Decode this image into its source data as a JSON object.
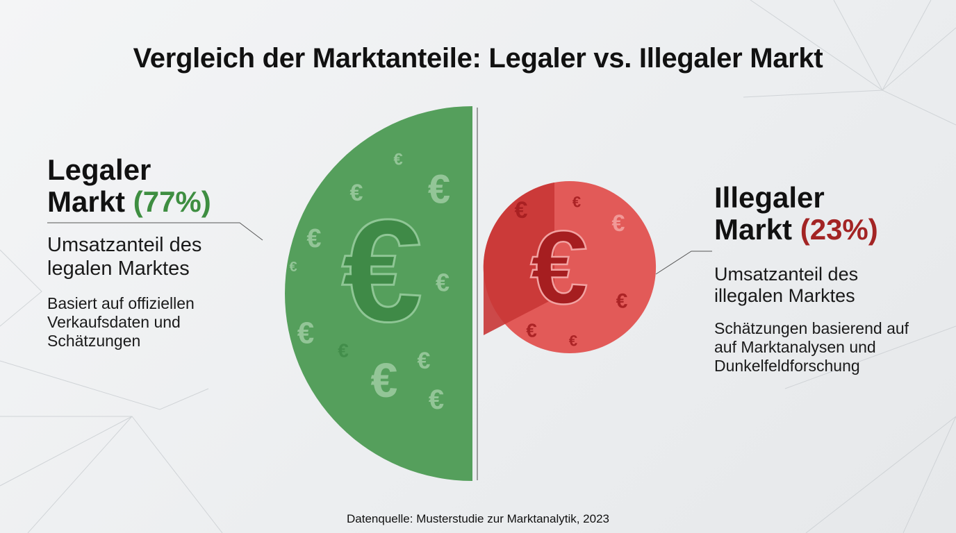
{
  "title": "Vergleich der Marktanteile: Legaler vs. Illegaler Markt",
  "legal": {
    "name_line1": "Legaler",
    "name_line2": "Markt",
    "percent_label": "(77%)",
    "sub_line1": "Umsatzanteil des",
    "sub_line2": "legalen Marktes",
    "note_line1": "Basiert auf offiziellen",
    "note_line2": "Verkaufsdaten und",
    "note_line3": "Schätzungen"
  },
  "illegal": {
    "name_line1": "Illegaler",
    "name_line2": "Markt",
    "percent_label": "(23%)",
    "sub_line1": "Umsatzanteil des",
    "sub_line2": "illegalen Marktes",
    "note_line1": "Schätzungen basierend auf",
    "note_line2": "auf Marktanalysen und",
    "note_line3": "Dunkelfeldforschung"
  },
  "source": "Datenquelle: Musterstudie zur Marktanalytik, 2023",
  "chart_data": {
    "type": "pie",
    "categories": [
      "Legaler Markt",
      "Illegaler Markt"
    ],
    "values": [
      77,
      23
    ],
    "unit": "%",
    "colors": {
      "legal": "#559f5c",
      "legal_icon": "#3f8a47",
      "illegal": "#e25a58",
      "illegal_dark": "#c93636",
      "illegal_icon": "#a61e20"
    },
    "icon": "euro-sign-icon",
    "legend": "none"
  }
}
